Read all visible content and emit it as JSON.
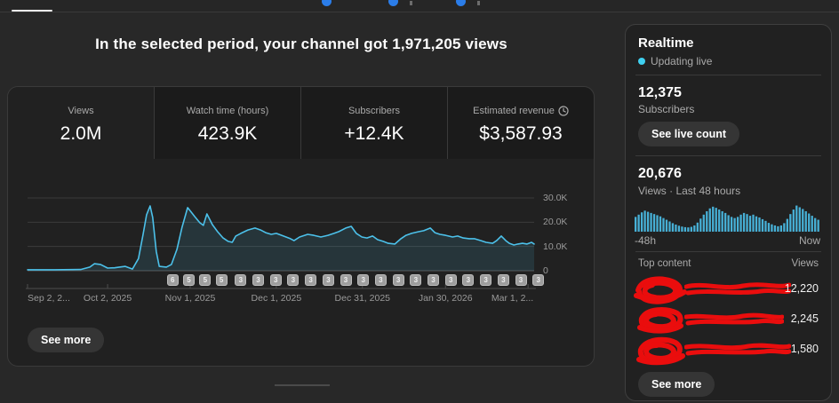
{
  "headline": "In the selected period, your channel got 1,971,205 views",
  "analytics_card": {
    "tabs": [
      {
        "label": "Views",
        "value": "2.0M",
        "selected": true
      },
      {
        "label": "Watch time (hours)",
        "value": "423.9K",
        "selected": false
      },
      {
        "label": "Subscribers",
        "value": "+12.4K",
        "selected": false
      },
      {
        "label": "Estimated revenue",
        "value": "$3,587.93",
        "selected": false,
        "has_clock_icon": true
      }
    ],
    "see_more_label": "See more"
  },
  "realtime": {
    "title": "Realtime",
    "status": "Updating live",
    "subscribers": {
      "value": "12,375",
      "label": "Subscribers",
      "button_label": "See live count"
    },
    "views48h": {
      "value": "20,676",
      "label": "Views · Last 48 hours",
      "axis_left": "-48h",
      "axis_right": "Now"
    },
    "top_content": {
      "header": "Top content",
      "views_header": "Views",
      "rows": [
        {
          "title_redacted": true,
          "views": "12,220"
        },
        {
          "title_redacted": true,
          "views": "2,245"
        },
        {
          "title_redacted": true,
          "views": "1,580"
        }
      ]
    },
    "see_more_label": "See more"
  },
  "colors": {
    "line": "#4cc1ea",
    "area_fill": "#4cc1ea",
    "bars": "#47b0d6",
    "accent_blue": "#2b7de9",
    "live_dot": "#3fd0f0",
    "redaction_red": "#ea0d0d"
  },
  "chart_data": [
    {
      "id": "views-over-time",
      "type": "area",
      "title": "Daily channel views over selected period",
      "ylim": [
        0,
        30000
      ],
      "grid": true,
      "yticks": [
        {
          "label": "30.0K",
          "value": 30000
        },
        {
          "label": "20.0K",
          "value": 20000
        },
        {
          "label": "10.0K",
          "value": 10000
        },
        {
          "label": "0",
          "value": 0
        }
      ],
      "xticks": [
        {
          "label": "Sep 2, 2...",
          "t": 0.0
        },
        {
          "label": "Oct 2, 2025",
          "t": 0.158
        },
        {
          "label": "Nov 1, 2025",
          "t": 0.321
        },
        {
          "label": "Dec 1, 2025",
          "t": 0.491
        },
        {
          "label": "Dec 31, 2025",
          "t": 0.661
        },
        {
          "label": "Jan 30, 2026",
          "t": 0.825
        },
        {
          "label": "Mar 1, 2...",
          "t": 0.988
        }
      ],
      "publish_badges": [
        6,
        5,
        5,
        5,
        3,
        3,
        3,
        3,
        3,
        3,
        3,
        3,
        3,
        3,
        3,
        3,
        3,
        3,
        3,
        3,
        3,
        3
      ],
      "points": [
        [
          0.0,
          400
        ],
        [
          0.053,
          400
        ],
        [
          0.105,
          500
        ],
        [
          0.123,
          1500
        ],
        [
          0.132,
          2900
        ],
        [
          0.144,
          2600
        ],
        [
          0.158,
          1100
        ],
        [
          0.172,
          1200
        ],
        [
          0.181,
          1500
        ],
        [
          0.193,
          1800
        ],
        [
          0.207,
          700
        ],
        [
          0.219,
          5000
        ],
        [
          0.228,
          15000
        ],
        [
          0.235,
          23000
        ],
        [
          0.242,
          26700
        ],
        [
          0.247,
          22000
        ],
        [
          0.254,
          8000
        ],
        [
          0.26,
          1800
        ],
        [
          0.274,
          1500
        ],
        [
          0.284,
          2600
        ],
        [
          0.295,
          8800
        ],
        [
          0.305,
          17900
        ],
        [
          0.316,
          26000
        ],
        [
          0.323,
          24200
        ],
        [
          0.33,
          22300
        ],
        [
          0.34,
          19800
        ],
        [
          0.347,
          18700
        ],
        [
          0.354,
          23400
        ],
        [
          0.365,
          19000
        ],
        [
          0.375,
          16100
        ],
        [
          0.386,
          13500
        ],
        [
          0.396,
          12100
        ],
        [
          0.404,
          11700
        ],
        [
          0.411,
          14300
        ],
        [
          0.421,
          15400
        ],
        [
          0.435,
          16800
        ],
        [
          0.449,
          17600
        ],
        [
          0.46,
          16800
        ],
        [
          0.47,
          15700
        ],
        [
          0.481,
          15000
        ],
        [
          0.491,
          15400
        ],
        [
          0.505,
          14300
        ],
        [
          0.519,
          13200
        ],
        [
          0.526,
          12400
        ],
        [
          0.537,
          13900
        ],
        [
          0.553,
          15000
        ],
        [
          0.565,
          14600
        ],
        [
          0.579,
          13900
        ],
        [
          0.593,
          14600
        ],
        [
          0.605,
          15400
        ],
        [
          0.614,
          16100
        ],
        [
          0.628,
          17600
        ],
        [
          0.639,
          18300
        ],
        [
          0.649,
          15400
        ],
        [
          0.66,
          13900
        ],
        [
          0.67,
          13500
        ],
        [
          0.681,
          14300
        ],
        [
          0.691,
          12800
        ],
        [
          0.702,
          12100
        ],
        [
          0.712,
          11300
        ],
        [
          0.725,
          11000
        ],
        [
          0.737,
          13200
        ],
        [
          0.747,
          14600
        ],
        [
          0.758,
          15400
        ],
        [
          0.772,
          16100
        ],
        [
          0.782,
          16500
        ],
        [
          0.795,
          17600
        ],
        [
          0.804,
          15700
        ],
        [
          0.814,
          15000
        ],
        [
          0.825,
          14600
        ],
        [
          0.839,
          13900
        ],
        [
          0.849,
          14300
        ],
        [
          0.86,
          13500
        ],
        [
          0.872,
          13200
        ],
        [
          0.882,
          13200
        ],
        [
          0.895,
          12400
        ],
        [
          0.905,
          11700
        ],
        [
          0.918,
          11300
        ],
        [
          0.926,
          12400
        ],
        [
          0.935,
          14300
        ],
        [
          0.944,
          12400
        ],
        [
          0.951,
          11300
        ],
        [
          0.96,
          10600
        ],
        [
          0.968,
          11000
        ],
        [
          0.977,
          11300
        ],
        [
          0.986,
          11000
        ],
        [
          0.995,
          11700
        ],
        [
          1.0,
          11000
        ]
      ]
    },
    {
      "id": "realtime-48h",
      "type": "bar",
      "title": "Views last 48 hours",
      "xlabels": [
        "-48h",
        "Now"
      ],
      "values_relative": [
        0.52,
        0.6,
        0.68,
        0.74,
        0.7,
        0.66,
        0.62,
        0.58,
        0.54,
        0.48,
        0.42,
        0.36,
        0.3,
        0.25,
        0.21,
        0.18,
        0.16,
        0.15,
        0.17,
        0.22,
        0.32,
        0.46,
        0.6,
        0.72,
        0.82,
        0.88,
        0.84,
        0.78,
        0.72,
        0.66,
        0.58,
        0.52,
        0.48,
        0.52,
        0.6,
        0.66,
        0.62,
        0.56,
        0.6,
        0.54,
        0.5,
        0.44,
        0.38,
        0.31,
        0.26,
        0.22,
        0.19,
        0.22,
        0.3,
        0.45,
        0.62,
        0.78,
        0.92,
        0.86,
        0.8,
        0.72,
        0.64,
        0.56,
        0.48,
        0.42
      ]
    }
  ]
}
